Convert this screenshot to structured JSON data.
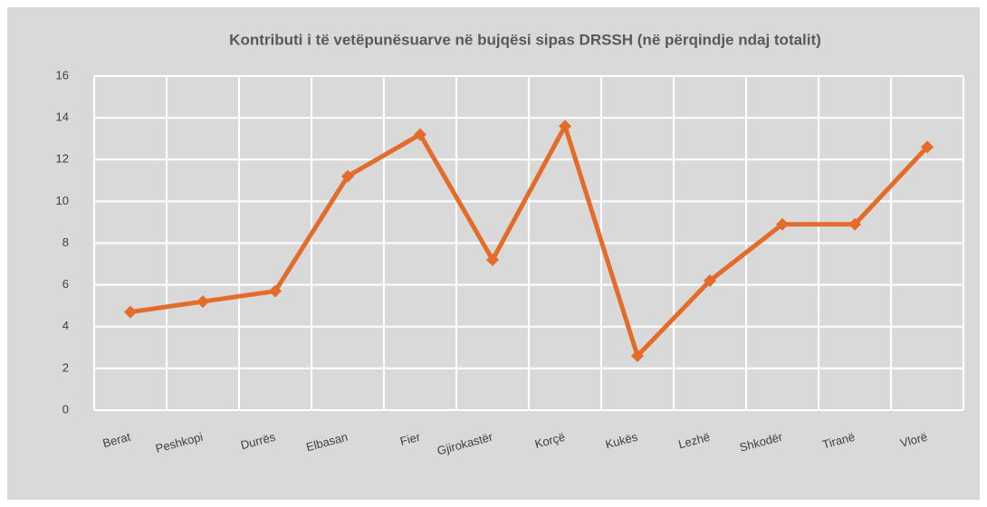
{
  "chart_data": {
    "type": "line",
    "title": "Kontributi i të vetëpunësuarve në bujqësi sipas DRSSH (në përqindje ndaj totalit)",
    "categories": [
      "Berat",
      "Peshkopi",
      "Durrës",
      "Elbasan",
      "Fier",
      "Gjirokastër",
      "Korçë",
      "Kukës",
      "Lezhë",
      "Shkodër",
      "Tiranë",
      "Vlorë"
    ],
    "series": [
      {
        "name": "Kontributi",
        "color": "#e36c2a",
        "values": [
          4.7,
          5.2,
          5.7,
          11.2,
          13.2,
          7.2,
          13.6,
          2.6,
          6.2,
          8.9,
          8.9,
          12.6
        ]
      }
    ],
    "ylim": [
      0,
      16
    ],
    "yticks": [
      0,
      2,
      4,
      6,
      8,
      10,
      12,
      14,
      16
    ],
    "grid": true
  }
}
